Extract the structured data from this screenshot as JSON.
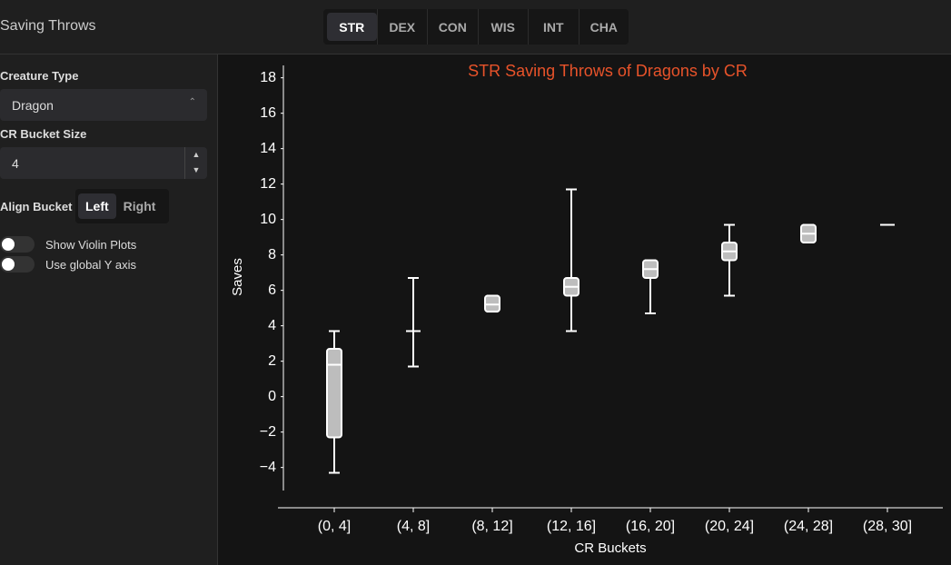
{
  "header": {
    "title": "Saving Throws",
    "tabs": [
      "STR",
      "DEX",
      "CON",
      "WIS",
      "INT",
      "CHA"
    ],
    "active_tab": "STR"
  },
  "sidebar": {
    "creature_type_label": "Creature Type",
    "creature_type": "Dragon",
    "bucket_size_label": "CR Bucket Size",
    "bucket_size": "4",
    "align_label": "Align Bucket",
    "align_options": [
      "Left",
      "Right"
    ],
    "align_selected": "Left",
    "toggles": [
      {
        "label": "Show Violin Plots",
        "on": false
      },
      {
        "label": "Use global Y axis",
        "on": false
      }
    ]
  },
  "chart_data": {
    "type": "box",
    "title": "STR Saving Throws of Dragons by CR",
    "title_color": "#e8532a",
    "x_label": "CR Buckets",
    "y_label": "Saves",
    "categories": [
      "(0, 4]",
      "(4, 8]",
      "(8, 12]",
      "(12, 16]",
      "(16, 20]",
      "(20, 24]",
      "(24, 28]",
      "(28, 30]"
    ],
    "min": [
      -4.3,
      1.7,
      4.8,
      3.7,
      4.7,
      5.7,
      8.7,
      9.7
    ],
    "q1": [
      -2.3,
      3.7,
      4.8,
      5.7,
      6.7,
      7.7,
      8.7,
      9.7
    ],
    "median": [
      1.8,
      3.7,
      5.2,
      6.2,
      7.2,
      8.2,
      9.2,
      9.7
    ],
    "q3": [
      2.7,
      3.7,
      5.7,
      6.7,
      7.7,
      8.7,
      9.7,
      9.7
    ],
    "max": [
      3.7,
      6.7,
      5.7,
      11.7,
      7.7,
      9.7,
      9.7,
      9.7
    ],
    "color": "#bdbdbd",
    "ylim": [
      -5.3,
      18.7
    ],
    "yticks": [
      {
        "value": -4,
        "label": "−4"
      },
      {
        "value": -2,
        "label": "−2"
      },
      0,
      2,
      4,
      6,
      8,
      10,
      12,
      14,
      16,
      18
    ]
  }
}
